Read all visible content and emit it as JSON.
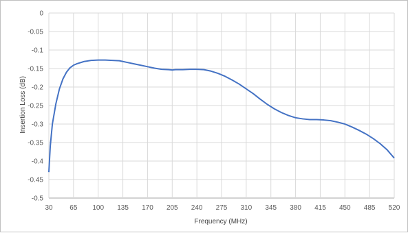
{
  "chart_data": {
    "type": "line",
    "title": "",
    "xlabel": "Frequency (MHz)",
    "ylabel": "Insertion Loss (dB)",
    "xlim": [
      30,
      520
    ],
    "ylim": [
      -0.5,
      0
    ],
    "x_ticks": [
      30,
      65,
      100,
      135,
      170,
      205,
      240,
      275,
      310,
      345,
      380,
      415,
      450,
      485,
      520
    ],
    "y_ticks": [
      0,
      -0.05,
      -0.1,
      -0.15,
      -0.2,
      -0.25,
      -0.3,
      -0.35,
      -0.4,
      -0.45,
      -0.5
    ],
    "x_tick_labels": [
      "30",
      "65",
      "100",
      "135",
      "170",
      "205",
      "240",
      "275",
      "310",
      "345",
      "380",
      "415",
      "450",
      "485",
      "520"
    ],
    "y_tick_labels": [
      "0",
      "-0.05",
      "-0.1",
      "-0.15",
      "-0.2",
      "-0.25",
      "-0.3",
      "-0.35",
      "-0.4",
      "-0.45",
      "-0.5"
    ],
    "grid": true,
    "colors": {
      "line": "#4472c4",
      "grid": "#d9d9d9",
      "axis": "#a6a6a6"
    },
    "series": [
      {
        "x": [
          30,
          32,
          35,
          40,
          45,
          50,
          55,
          60,
          65,
          70,
          80,
          90,
          100,
          110,
          120,
          130,
          135,
          140,
          150,
          160,
          170,
          180,
          190,
          200,
          205,
          210,
          220,
          230,
          240,
          250,
          260,
          270,
          280,
          290,
          300,
          310,
          320,
          330,
          340,
          350,
          360,
          370,
          380,
          390,
          400,
          410,
          420,
          430,
          440,
          450,
          460,
          470,
          480,
          490,
          500,
          510,
          520
        ],
        "y": [
          -0.43,
          -0.36,
          -0.3,
          -0.245,
          -0.205,
          -0.178,
          -0.16,
          -0.148,
          -0.141,
          -0.137,
          -0.131,
          -0.128,
          -0.127,
          -0.127,
          -0.128,
          -0.129,
          -0.131,
          -0.133,
          -0.137,
          -0.141,
          -0.145,
          -0.149,
          -0.152,
          -0.153,
          -0.154,
          -0.153,
          -0.153,
          -0.152,
          -0.152,
          -0.153,
          -0.157,
          -0.163,
          -0.171,
          -0.181,
          -0.192,
          -0.205,
          -0.218,
          -0.233,
          -0.247,
          -0.259,
          -0.269,
          -0.277,
          -0.283,
          -0.286,
          -0.288,
          -0.288,
          -0.289,
          -0.291,
          -0.295,
          -0.3,
          -0.308,
          -0.317,
          -0.327,
          -0.339,
          -0.353,
          -0.37,
          -0.392
        ]
      }
    ]
  }
}
